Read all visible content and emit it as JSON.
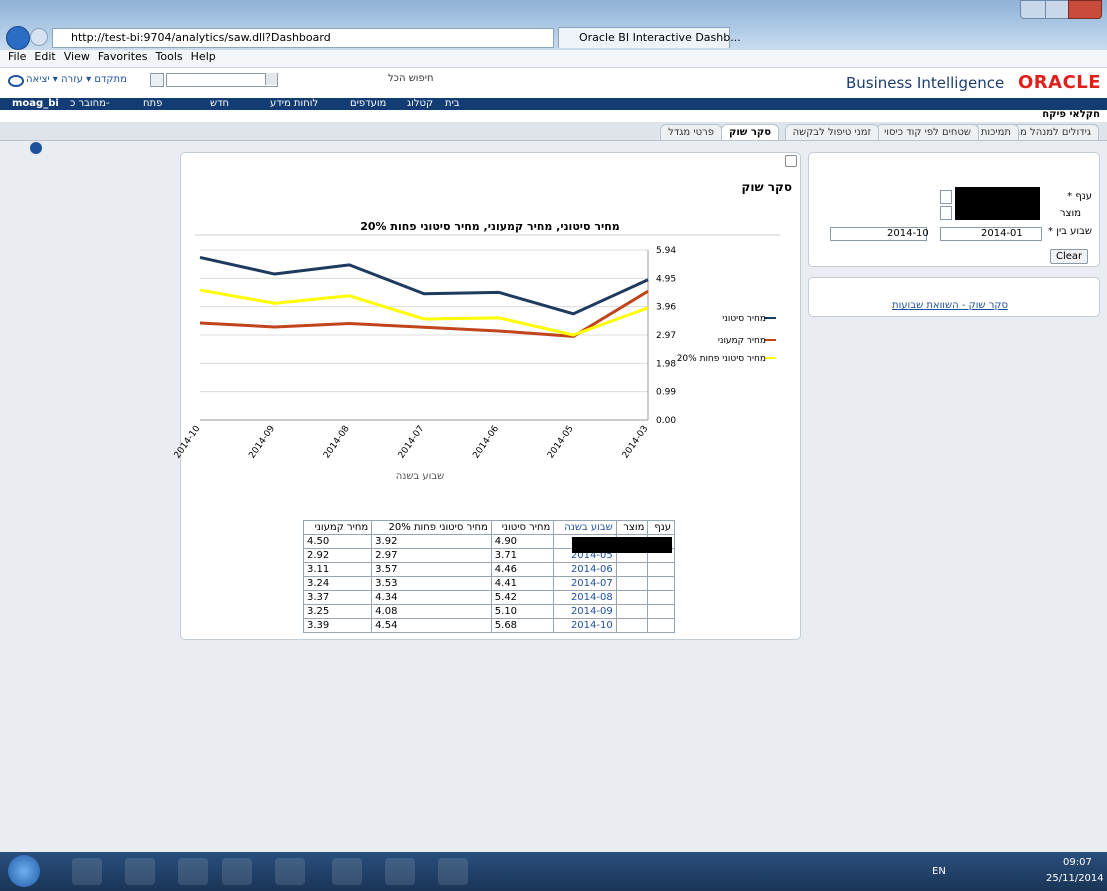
{
  "browser": {
    "url": "http://test-bi:9704/analytics/saw.dll?Dashboard",
    "tab": "Oracle BI Interactive Dashb...",
    "menu": [
      "File",
      "Edit",
      "View",
      "Favorites",
      "Tools",
      "Help"
    ]
  },
  "header": {
    "brand": "Business Intelligence",
    "logo": "ORACLE",
    "links": [
      "יציאה",
      "עזרה",
      "מתקדם"
    ],
    "search_label": "חיפוש",
    "search_scope": "הכל"
  },
  "nav": {
    "items": [
      "בית",
      "קטלוג",
      "מועדפים",
      "לוחות מידע",
      "חדש",
      "פתח"
    ],
    "signed_in_label": "מחובר כ-",
    "user": "moag_bi"
  },
  "dashboard": {
    "name": "חקלאי פיקח",
    "tabs": [
      "גידולים למנהל מחוז",
      "תמיכות",
      "שטחים לפי קוד כיסוי",
      "זמני טיפול לבקשה",
      "סקר שוק",
      "פרטי מגדל"
    ]
  },
  "filters": {
    "fields": [
      "ענף *",
      "מוצר",
      "שבוע בין *"
    ],
    "from": "2014-01",
    "to": "2014-10",
    "clear": "Clear",
    "link": "סקר שוק - השוואת שבועות"
  },
  "section_title": "סקר שוק",
  "chart_data": {
    "type": "line",
    "title": "מחיר סיטוני, מחיר קמעוני, מחיר סיטוני פחות 20%",
    "x_label": "שבוע בשנה",
    "categories": [
      "2014-10",
      "2014-09",
      "2014-08",
      "2014-07",
      "2014-06",
      "2014-05",
      "2014-03"
    ],
    "series": [
      {
        "name": "מחיר סיטוני",
        "color": "#1f3a5f",
        "values": [
          5.68,
          5.1,
          5.42,
          4.41,
          4.46,
          3.71,
          4.9
        ]
      },
      {
        "name": "מחיר קמעוני",
        "color": "#c0441c",
        "values": [
          3.39,
          3.25,
          3.37,
          3.24,
          3.11,
          2.92,
          4.5
        ]
      },
      {
        "name": "מחיר סיטוני פחות 20%",
        "color": "#ffff00",
        "values": [
          4.54,
          4.08,
          4.34,
          3.53,
          3.57,
          2.97,
          3.92
        ]
      }
    ],
    "ylim": [
      0,
      5.94
    ],
    "yticks": [
      {
        "value": 0,
        "label": "0.00"
      },
      0.99,
      1.98,
      2.97,
      3.96,
      4.95,
      5.94
    ],
    "grid": true,
    "legend": "right"
  },
  "table": {
    "columns": [
      "ענף",
      "מוצר",
      "שבוע בשנה",
      "מחיר סיטוני",
      "מחיר סיטוני פחות 20%",
      "מחיר קמעוני"
    ],
    "rows": [
      [
        "2014-03",
        "4.90",
        "3.92",
        "4.50"
      ],
      [
        "2014-05",
        "3.71",
        "2.97",
        "2.92"
      ],
      [
        "2014-06",
        "4.46",
        "3.57",
        "3.11"
      ],
      [
        "2014-07",
        "4.41",
        "3.53",
        "3.24"
      ],
      [
        "2014-08",
        "5.42",
        "4.34",
        "3.37"
      ],
      [
        "2014-09",
        "5.10",
        "4.08",
        "3.25"
      ],
      [
        "2014-10",
        "5.68",
        "4.54",
        "3.39"
      ]
    ]
  },
  "taskbar": {
    "lang": "EN",
    "time": "09:07",
    "date": "25/11/2014"
  }
}
